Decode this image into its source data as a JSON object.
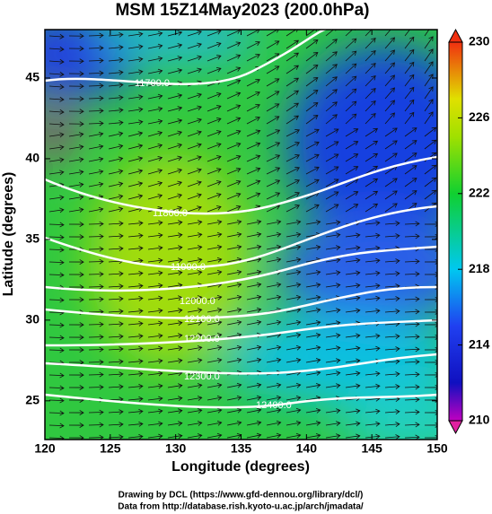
{
  "chart_data": {
    "type": "contour-map",
    "title": "MSM 15Z14May2023 (200.0hPa)",
    "x_label": "Longitude (degrees)",
    "y_label": "Latitude  (degrees)",
    "xlim": [
      120,
      150
    ],
    "xticks": [
      120,
      125,
      130,
      135,
      140,
      145,
      150
    ],
    "ylim": [
      22.6,
      48
    ],
    "yticks": [
      25,
      30,
      35,
      40,
      45
    ],
    "colorbar_lim": [
      210,
      230
    ],
    "colorbar_ticks": [
      210,
      214,
      218,
      222,
      226,
      230
    ],
    "contour_labels": [
      "11700.0",
      "11800.0",
      "11900.0",
      "12000.0",
      "12100.0",
      "12200.0",
      "12300.0",
      "12400.0"
    ],
    "footer": [
      "Drawing by DCL (https://www.gfd-dennou.org/library/dcl/)",
      "Data from http://database.rish.kyoto-u.ac.jp/arch/jmadata/"
    ]
  }
}
